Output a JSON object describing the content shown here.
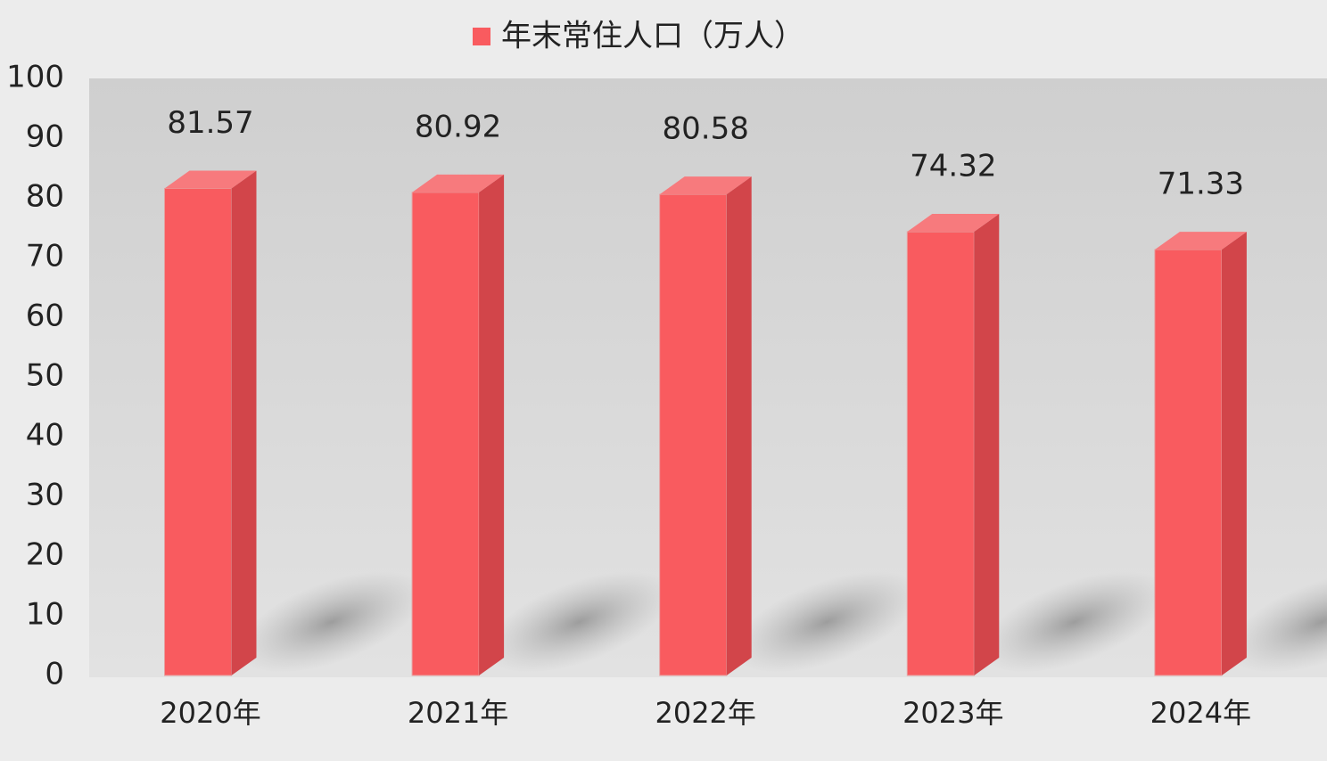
{
  "chart_data": {
    "type": "bar3d",
    "categories": [
      "2020年",
      "2021年",
      "2022年",
      "2023年",
      "2024年"
    ],
    "series": [
      {
        "name": "年末常住人口（万人）",
        "color": "#f95b5f",
        "values": [
          81.57,
          80.92,
          80.58,
          74.32,
          71.33
        ]
      }
    ],
    "ylim": [
      0,
      100
    ],
    "yticks": [
      0,
      10,
      20,
      30,
      40,
      50,
      60,
      70,
      80,
      90,
      100
    ],
    "legend": "top",
    "data_labels": true
  }
}
